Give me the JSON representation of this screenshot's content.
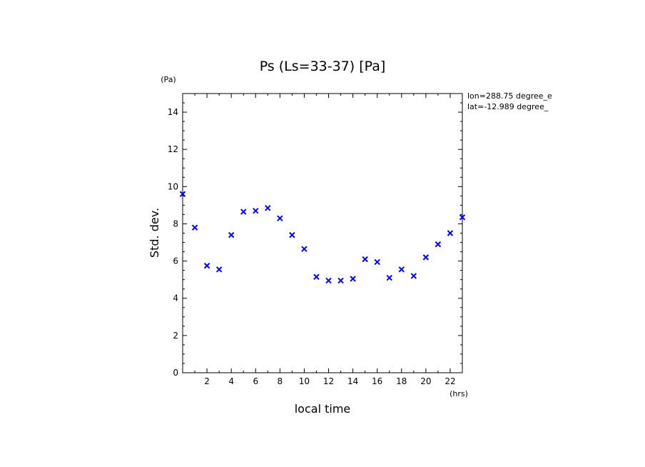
{
  "chart_data": {
    "type": "scatter",
    "title": "Ps (Ls=33-37) [Pa]",
    "xlabel": "local time",
    "ylabel": "Std. dev.",
    "x_unit": "(hrs)",
    "y_unit": "(Pa)",
    "xlim": [
      0,
      23
    ],
    "ylim": [
      0,
      15
    ],
    "x_ticks": [
      2,
      4,
      6,
      8,
      10,
      12,
      14,
      16,
      18,
      20,
      22
    ],
    "y_ticks": [
      0,
      2,
      4,
      6,
      8,
      10,
      12,
      14
    ],
    "annotations": [
      "lon=288.75 degree_e",
      "lat=-12.989 degree_"
    ],
    "marker": "x",
    "color": "#0000ff",
    "grid": false,
    "points": [
      {
        "x": 0,
        "y": 9.6
      },
      {
        "x": 1,
        "y": 7.8
      },
      {
        "x": 2,
        "y": 5.75
      },
      {
        "x": 3,
        "y": 5.55
      },
      {
        "x": 4,
        "y": 7.4
      },
      {
        "x": 5,
        "y": 8.65
      },
      {
        "x": 6,
        "y": 8.7
      },
      {
        "x": 7,
        "y": 8.85
      },
      {
        "x": 8,
        "y": 8.3
      },
      {
        "x": 9,
        "y": 7.4
      },
      {
        "x": 10,
        "y": 6.65
      },
      {
        "x": 11,
        "y": 5.15
      },
      {
        "x": 12,
        "y": 4.95
      },
      {
        "x": 13,
        "y": 4.95
      },
      {
        "x": 14,
        "y": 5.05
      },
      {
        "x": 15,
        "y": 6.1
      },
      {
        "x": 16,
        "y": 5.95
      },
      {
        "x": 17,
        "y": 5.1
      },
      {
        "x": 18,
        "y": 5.55
      },
      {
        "x": 19,
        "y": 5.2
      },
      {
        "x": 20,
        "y": 6.2
      },
      {
        "x": 21,
        "y": 6.9
      },
      {
        "x": 22,
        "y": 7.5
      },
      {
        "x": 23,
        "y": 8.35
      }
    ]
  }
}
